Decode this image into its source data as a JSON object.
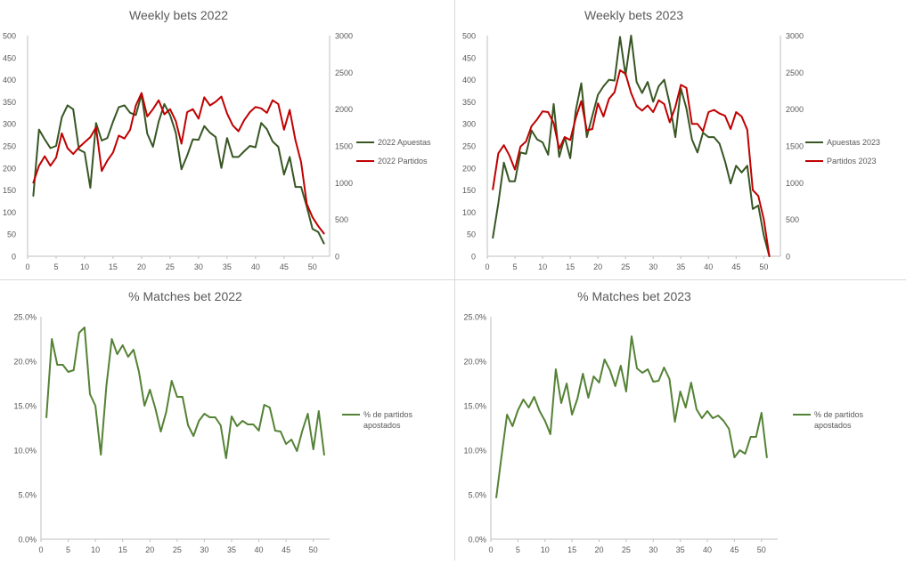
{
  "chart_data": [
    {
      "type": "line",
      "title": "Weekly bets 2022",
      "x": [
        1,
        2,
        3,
        4,
        5,
        6,
        7,
        8,
        9,
        10,
        11,
        12,
        13,
        14,
        15,
        16,
        17,
        18,
        19,
        20,
        21,
        22,
        23,
        24,
        25,
        26,
        27,
        28,
        29,
        30,
        31,
        32,
        33,
        34,
        35,
        36,
        37,
        38,
        39,
        40,
        41,
        42,
        43,
        44,
        45,
        46,
        47,
        48,
        49,
        50,
        51,
        52
      ],
      "xlim": [
        0,
        53
      ],
      "xticks": [
        0,
        5,
        10,
        15,
        20,
        25,
        30,
        35,
        40,
        45,
        50
      ],
      "ylim": [
        0,
        500
      ],
      "yticks": [
        0,
        50,
        100,
        150,
        200,
        250,
        300,
        350,
        400,
        450,
        500
      ],
      "y2lim": [
        0,
        3000
      ],
      "y2ticks": [
        0,
        500,
        1000,
        1500,
        2000,
        2500,
        3000
      ],
      "legend_position": "right",
      "series": [
        {
          "name": "2022 Apuestas",
          "axis": "left",
          "color": "#375623",
          "values": [
            137,
            287,
            265,
            245,
            250,
            315,
            342,
            333,
            242,
            235,
            155,
            302,
            262,
            268,
            305,
            338,
            342,
            325,
            320,
            367,
            278,
            248,
            305,
            345,
            320,
            280,
            197,
            228,
            265,
            264,
            295,
            280,
            270,
            200,
            268,
            225,
            225,
            238,
            250,
            247,
            302,
            288,
            260,
            248,
            185,
            225,
            157,
            157,
            112,
            62,
            55,
            29
          ]
        },
        {
          "name": "2022 Partidos",
          "axis": "right",
          "color": "#C00000",
          "values": [
            1000,
            1230,
            1360,
            1230,
            1340,
            1670,
            1470,
            1390,
            1480,
            1550,
            1620,
            1750,
            1160,
            1300,
            1410,
            1640,
            1600,
            1720,
            2050,
            2220,
            1900,
            2000,
            2120,
            1930,
            2000,
            1840,
            1530,
            1960,
            2000,
            1870,
            2160,
            2050,
            2100,
            2170,
            1940,
            1780,
            1700,
            1850,
            1960,
            2030,
            2010,
            1950,
            2120,
            2070,
            1720,
            1990,
            1580,
            1280,
            710,
            530,
            410,
            310
          ]
        }
      ]
    },
    {
      "type": "line",
      "title": "Weekly bets 2023",
      "x": [
        1,
        2,
        3,
        4,
        5,
        6,
        7,
        8,
        9,
        10,
        11,
        12,
        13,
        14,
        15,
        16,
        17,
        18,
        19,
        20,
        21,
        22,
        23,
        24,
        25,
        26,
        27,
        28,
        29,
        30,
        31,
        32,
        33,
        34,
        35,
        36,
        37,
        38,
        39,
        40,
        41,
        42,
        43,
        44,
        45,
        46,
        47,
        48,
        49,
        50,
        51
      ],
      "xlim": [
        0,
        53
      ],
      "xticks": [
        0,
        5,
        10,
        15,
        20,
        25,
        30,
        35,
        40,
        45,
        50
      ],
      "ylim": [
        0,
        500
      ],
      "yticks": [
        0,
        50,
        100,
        150,
        200,
        250,
        300,
        350,
        400,
        450,
        500
      ],
      "y2lim": [
        0,
        3000
      ],
      "y2ticks": [
        0,
        500,
        1000,
        1500,
        2000,
        2500,
        3000
      ],
      "legend_position": "right",
      "series": [
        {
          "name": "Apuestas 2023",
          "axis": "left",
          "color": "#375623",
          "values": [
            42,
            120,
            212,
            170,
            170,
            235,
            232,
            285,
            265,
            258,
            230,
            345,
            225,
            270,
            222,
            330,
            392,
            270,
            318,
            366,
            385,
            400,
            398,
            497,
            410,
            500,
            395,
            370,
            395,
            350,
            385,
            400,
            345,
            270,
            380,
            335,
            265,
            235,
            280,
            270,
            270,
            255,
            215,
            165,
            205,
            190,
            205,
            107,
            115,
            47,
            0
          ]
        },
        {
          "name": "Partidos 2023",
          "axis": "right",
          "color": "#C00000",
          "values": [
            910,
            1400,
            1510,
            1370,
            1180,
            1490,
            1560,
            1770,
            1860,
            1970,
            1960,
            1810,
            1460,
            1620,
            1580,
            1880,
            2110,
            1710,
            1730,
            2080,
            1900,
            2140,
            2230,
            2530,
            2480,
            2220,
            2040,
            1980,
            2050,
            1960,
            2120,
            2070,
            1820,
            2030,
            2330,
            2290,
            1800,
            1800,
            1700,
            1960,
            1990,
            1940,
            1910,
            1730,
            1960,
            1900,
            1720,
            900,
            820,
            500,
            0
          ]
        }
      ]
    },
    {
      "type": "line",
      "title": "% Matches bet 2022",
      "x": [
        1,
        2,
        3,
        4,
        5,
        6,
        7,
        8,
        9,
        10,
        11,
        12,
        13,
        14,
        15,
        16,
        17,
        18,
        19,
        20,
        21,
        22,
        23,
        24,
        25,
        26,
        27,
        28,
        29,
        30,
        31,
        32,
        33,
        34,
        35,
        36,
        37,
        38,
        39,
        40,
        41,
        42,
        43,
        44,
        45,
        46,
        47,
        48,
        49,
        50,
        51,
        52
      ],
      "xlim": [
        0,
        53
      ],
      "xticks": [
        0,
        5,
        10,
        15,
        20,
        25,
        30,
        35,
        40,
        45,
        50
      ],
      "ylim": [
        0,
        0.25
      ],
      "yticks": [
        "0.0%",
        "5.0%",
        "10.0%",
        "15.0%",
        "20.0%",
        "25.0%"
      ],
      "legend_position": "right",
      "series": [
        {
          "name": "% de partidos apostados",
          "axis": "left",
          "color": "#548235",
          "values": [
            0.137,
            0.225,
            0.196,
            0.196,
            0.188,
            0.19,
            0.232,
            0.238,
            0.163,
            0.15,
            0.095,
            0.172,
            0.225,
            0.208,
            0.218,
            0.205,
            0.213,
            0.188,
            0.15,
            0.168,
            0.147,
            0.121,
            0.143,
            0.178,
            0.16,
            0.16,
            0.128,
            0.116,
            0.133,
            0.141,
            0.137,
            0.137,
            0.128,
            0.091,
            0.138,
            0.127,
            0.133,
            0.129,
            0.129,
            0.122,
            0.151,
            0.148,
            0.122,
            0.121,
            0.107,
            0.112,
            0.099,
            0.122,
            0.141,
            0.101,
            0.144,
            0.095
          ]
        }
      ]
    },
    {
      "type": "line",
      "title": "% Matches bet 2023",
      "x": [
        1,
        2,
        3,
        4,
        5,
        6,
        7,
        8,
        9,
        10,
        11,
        12,
        13,
        14,
        15,
        16,
        17,
        18,
        19,
        20,
        21,
        22,
        23,
        24,
        25,
        26,
        27,
        28,
        29,
        30,
        31,
        32,
        33,
        34,
        35,
        36,
        37,
        38,
        39,
        40,
        41,
        42,
        43,
        44,
        45,
        46,
        47,
        48,
        49,
        50,
        51
      ],
      "xlim": [
        0,
        53
      ],
      "xticks": [
        0,
        5,
        10,
        15,
        20,
        25,
        30,
        35,
        40,
        45,
        50
      ],
      "ylim": [
        0,
        0.25
      ],
      "yticks": [
        "0.0%",
        "5.0%",
        "10.0%",
        "15.0%",
        "20.0%",
        "25.0%"
      ],
      "legend_position": "right",
      "series": [
        {
          "name": "% de partidos apostados",
          "axis": "left",
          "color": "#548235",
          "values": [
            0.047,
            0.095,
            0.14,
            0.127,
            0.145,
            0.157,
            0.148,
            0.16,
            0.144,
            0.133,
            0.118,
            0.191,
            0.153,
            0.175,
            0.14,
            0.158,
            0.186,
            0.159,
            0.183,
            0.176,
            0.202,
            0.19,
            0.172,
            0.195,
            0.166,
            0.228,
            0.192,
            0.187,
            0.191,
            0.177,
            0.178,
            0.193,
            0.18,
            0.132,
            0.166,
            0.148,
            0.176,
            0.146,
            0.136,
            0.144,
            0.136,
            0.139,
            0.133,
            0.124,
            0.092,
            0.1,
            0.096,
            0.115,
            0.115,
            0.142,
            0.092
          ]
        }
      ]
    }
  ]
}
